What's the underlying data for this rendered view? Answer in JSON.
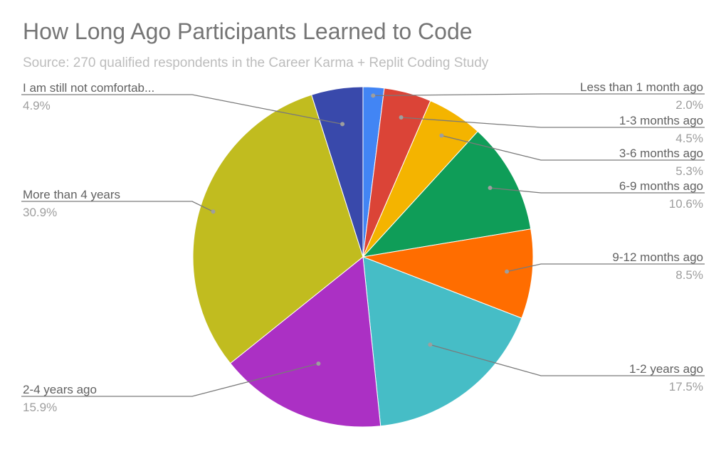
{
  "chart_data": {
    "type": "pie",
    "title": "How Long Ago Participants Learned to Code",
    "subtitle": "Source: 270 qualified respondents in the Career Karma + Replit Coding Study",
    "legend": "labels-outside",
    "slices": [
      {
        "label": "Less than 1 month ago",
        "value": 2.0,
        "pct_label": "2.0%",
        "color": "#4285f4",
        "side": "right"
      },
      {
        "label": "1-3 months ago",
        "value": 4.5,
        "pct_label": "4.5%",
        "color": "#db4437",
        "side": "right"
      },
      {
        "label": "3-6 months ago",
        "value": 5.3,
        "pct_label": "5.3%",
        "color": "#f4b400",
        "side": "right"
      },
      {
        "label": "6-9 months ago",
        "value": 10.6,
        "pct_label": "10.6%",
        "color": "#0f9d58",
        "side": "right"
      },
      {
        "label": "9-12 months ago",
        "value": 8.5,
        "pct_label": "8.5%",
        "color": "#ff6d00",
        "side": "right"
      },
      {
        "label": "1-2 years ago",
        "value": 17.5,
        "pct_label": "17.5%",
        "color": "#46bdc6",
        "side": "right"
      },
      {
        "label": "2-4 years ago",
        "value": 15.9,
        "pct_label": "15.9%",
        "color": "#ab30c4",
        "side": "left"
      },
      {
        "label": "More than 4 years",
        "value": 30.9,
        "pct_label": "30.9%",
        "color": "#c1bc1f",
        "side": "left"
      },
      {
        "label": "I am still not comfortab...",
        "value": 4.9,
        "pct_label": "4.9%",
        "color": "#3949ab",
        "side": "left"
      }
    ]
  }
}
